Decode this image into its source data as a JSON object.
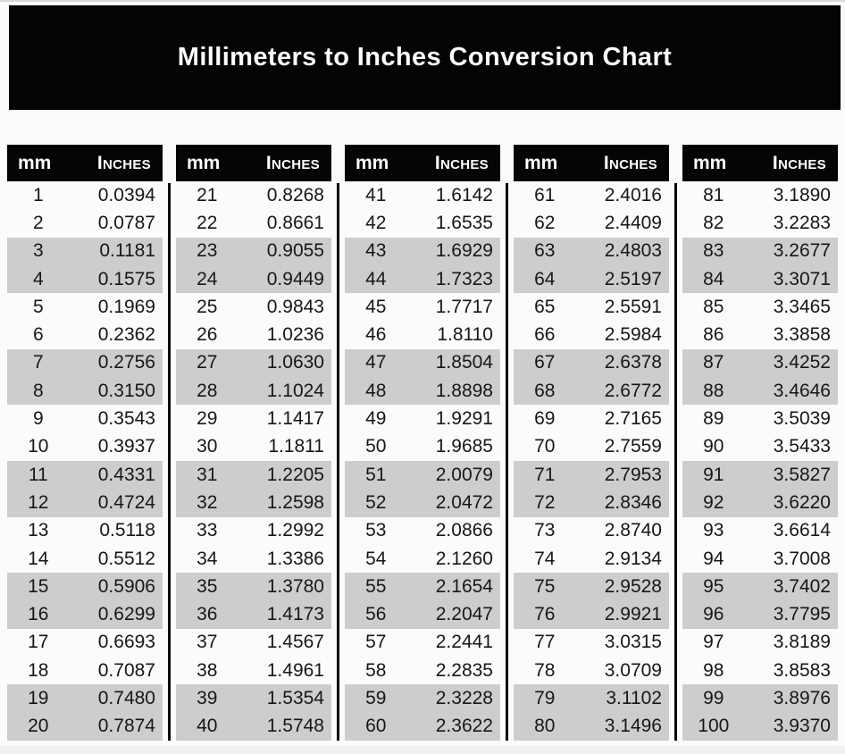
{
  "title": "Millimeters to Inches Conversion Chart",
  "colors": {
    "banner_bg": "#040404",
    "header_bg": "#050505",
    "alt_row_bg": "#cdcdcd",
    "text": "#171717",
    "header_text": "#ffffff"
  },
  "chart_data": {
    "type": "table",
    "title": "Millimeters to Inches Conversion Chart",
    "column_headers": [
      "mm",
      "Inches"
    ],
    "layout": "5 side-by-side two-column tables, paired rows shaded gray, black vertical dividers between tables",
    "tables": [
      {
        "rows": [
          [
            1,
            "0.0394"
          ],
          [
            2,
            "0.0787"
          ],
          [
            3,
            "0.1181"
          ],
          [
            4,
            "0.1575"
          ],
          [
            5,
            "0.1969"
          ],
          [
            6,
            "0.2362"
          ],
          [
            7,
            "0.2756"
          ],
          [
            8,
            "0.3150"
          ],
          [
            9,
            "0.3543"
          ],
          [
            10,
            "0.3937"
          ],
          [
            11,
            "0.4331"
          ],
          [
            12,
            "0.4724"
          ],
          [
            13,
            "0.5118"
          ],
          [
            14,
            "0.5512"
          ],
          [
            15,
            "0.5906"
          ],
          [
            16,
            "0.6299"
          ],
          [
            17,
            "0.6693"
          ],
          [
            18,
            "0.7087"
          ],
          [
            19,
            "0.7480"
          ],
          [
            20,
            "0.7874"
          ]
        ]
      },
      {
        "rows": [
          [
            21,
            "0.8268"
          ],
          [
            22,
            "0.8661"
          ],
          [
            23,
            "0.9055"
          ],
          [
            24,
            "0.9449"
          ],
          [
            25,
            "0.9843"
          ],
          [
            26,
            "1.0236"
          ],
          [
            27,
            "1.0630"
          ],
          [
            28,
            "1.1024"
          ],
          [
            29,
            "1.1417"
          ],
          [
            30,
            "1.1811"
          ],
          [
            31,
            "1.2205"
          ],
          [
            32,
            "1.2598"
          ],
          [
            33,
            "1.2992"
          ],
          [
            34,
            "1.3386"
          ],
          [
            35,
            "1.3780"
          ],
          [
            36,
            "1.4173"
          ],
          [
            37,
            "1.4567"
          ],
          [
            38,
            "1.4961"
          ],
          [
            39,
            "1.5354"
          ],
          [
            40,
            "1.5748"
          ]
        ]
      },
      {
        "rows": [
          [
            41,
            "1.6142"
          ],
          [
            42,
            "1.6535"
          ],
          [
            43,
            "1.6929"
          ],
          [
            44,
            "1.7323"
          ],
          [
            45,
            "1.7717"
          ],
          [
            46,
            "1.8110"
          ],
          [
            47,
            "1.8504"
          ],
          [
            48,
            "1.8898"
          ],
          [
            49,
            "1.9291"
          ],
          [
            50,
            "1.9685"
          ],
          [
            51,
            "2.0079"
          ],
          [
            52,
            "2.0472"
          ],
          [
            53,
            "2.0866"
          ],
          [
            54,
            "2.1260"
          ],
          [
            55,
            "2.1654"
          ],
          [
            56,
            "2.2047"
          ],
          [
            57,
            "2.2441"
          ],
          [
            58,
            "2.2835"
          ],
          [
            59,
            "2.3228"
          ],
          [
            60,
            "2.3622"
          ]
        ]
      },
      {
        "rows": [
          [
            61,
            "2.4016"
          ],
          [
            62,
            "2.4409"
          ],
          [
            63,
            "2.4803"
          ],
          [
            64,
            "2.5197"
          ],
          [
            65,
            "2.5591"
          ],
          [
            66,
            "2.5984"
          ],
          [
            67,
            "2.6378"
          ],
          [
            68,
            "2.6772"
          ],
          [
            69,
            "2.7165"
          ],
          [
            70,
            "2.7559"
          ],
          [
            71,
            "2.7953"
          ],
          [
            72,
            "2.8346"
          ],
          [
            73,
            "2.8740"
          ],
          [
            74,
            "2.9134"
          ],
          [
            75,
            "2.9528"
          ],
          [
            76,
            "2.9921"
          ],
          [
            77,
            "3.0315"
          ],
          [
            78,
            "3.0709"
          ],
          [
            79,
            "3.1102"
          ],
          [
            80,
            "3.1496"
          ]
        ]
      },
      {
        "rows": [
          [
            81,
            "3.1890"
          ],
          [
            82,
            "3.2283"
          ],
          [
            83,
            "3.2677"
          ],
          [
            84,
            "3.3071"
          ],
          [
            85,
            "3.3465"
          ],
          [
            86,
            "3.3858"
          ],
          [
            87,
            "3.4252"
          ],
          [
            88,
            "3.4646"
          ],
          [
            89,
            "3.5039"
          ],
          [
            90,
            "3.5433"
          ],
          [
            91,
            "3.5827"
          ],
          [
            92,
            "3.6220"
          ],
          [
            93,
            "3.6614"
          ],
          [
            94,
            "3.7008"
          ],
          [
            95,
            "3.7402"
          ],
          [
            96,
            "3.7795"
          ],
          [
            97,
            "3.8189"
          ],
          [
            98,
            "3.8583"
          ],
          [
            99,
            "3.8976"
          ],
          [
            100,
            "3.9370"
          ]
        ]
      }
    ]
  }
}
